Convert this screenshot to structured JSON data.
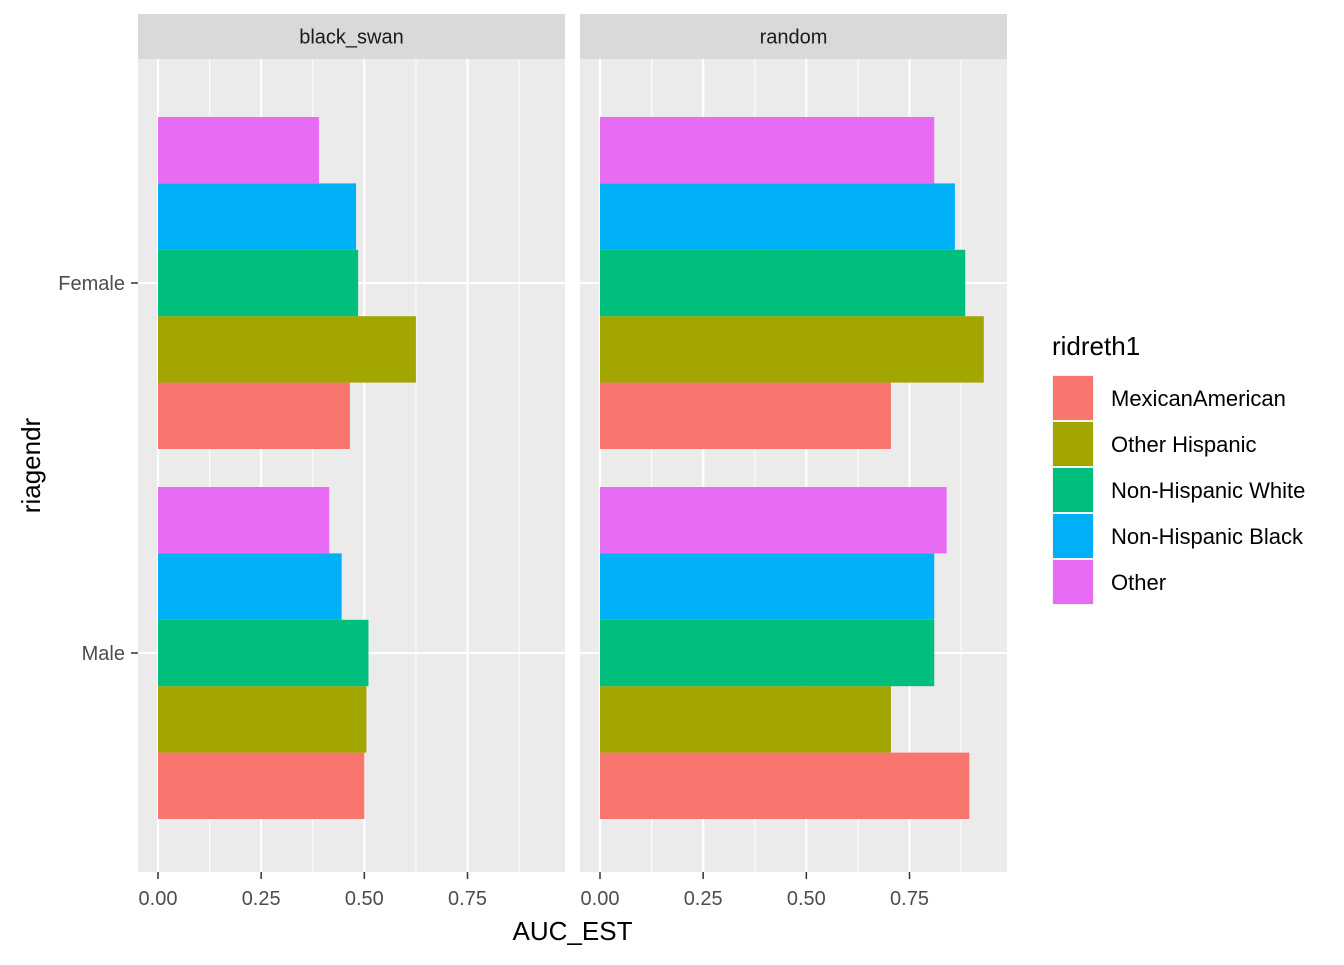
{
  "chart_data": {
    "type": "bar",
    "orientation": "horizontal",
    "facet_variable": "facet",
    "facets": [
      "black_swan",
      "random"
    ],
    "categories": [
      "Female",
      "Male"
    ],
    "xlabel": "AUC_EST",
    "ylabel": "riagendr",
    "xlim": [
      0,
      0.95
    ],
    "xticks": [
      "0.00",
      "0.25",
      "0.50",
      "0.75"
    ],
    "xtick_values": [
      0,
      0.25,
      0.5,
      0.75
    ],
    "grid": true,
    "legend": {
      "title": "ridreth1",
      "placement": "right",
      "entries": [
        "MexicanAmerican",
        "Other Hispanic",
        "Non-Hispanic White",
        "Non-Hispanic Black",
        "Other"
      ]
    },
    "series": [
      {
        "name": "MexicanAmerican",
        "color": "#F8766D",
        "values": {
          "black_swan": [
            0.465,
            0.5
          ],
          "random": [
            0.705,
            0.895
          ]
        }
      },
      {
        "name": "Other Hispanic",
        "color": "#A3A500",
        "values": {
          "black_swan": [
            0.625,
            0.505
          ],
          "random": [
            0.93,
            0.705
          ]
        }
      },
      {
        "name": "Non-Hispanic White",
        "color": "#00BF7D",
        "values": {
          "black_swan": [
            0.485,
            0.51
          ],
          "random": [
            0.885,
            0.81
          ]
        }
      },
      {
        "name": "Non-Hispanic Black",
        "color": "#00B0F6",
        "values": {
          "black_swan": [
            0.48,
            0.445
          ],
          "random": [
            0.86,
            0.81
          ]
        }
      },
      {
        "name": "Other",
        "color": "#E76BF3",
        "values": {
          "black_swan": [
            0.39,
            0.415
          ],
          "random": [
            0.81,
            0.84
          ]
        }
      }
    ]
  }
}
